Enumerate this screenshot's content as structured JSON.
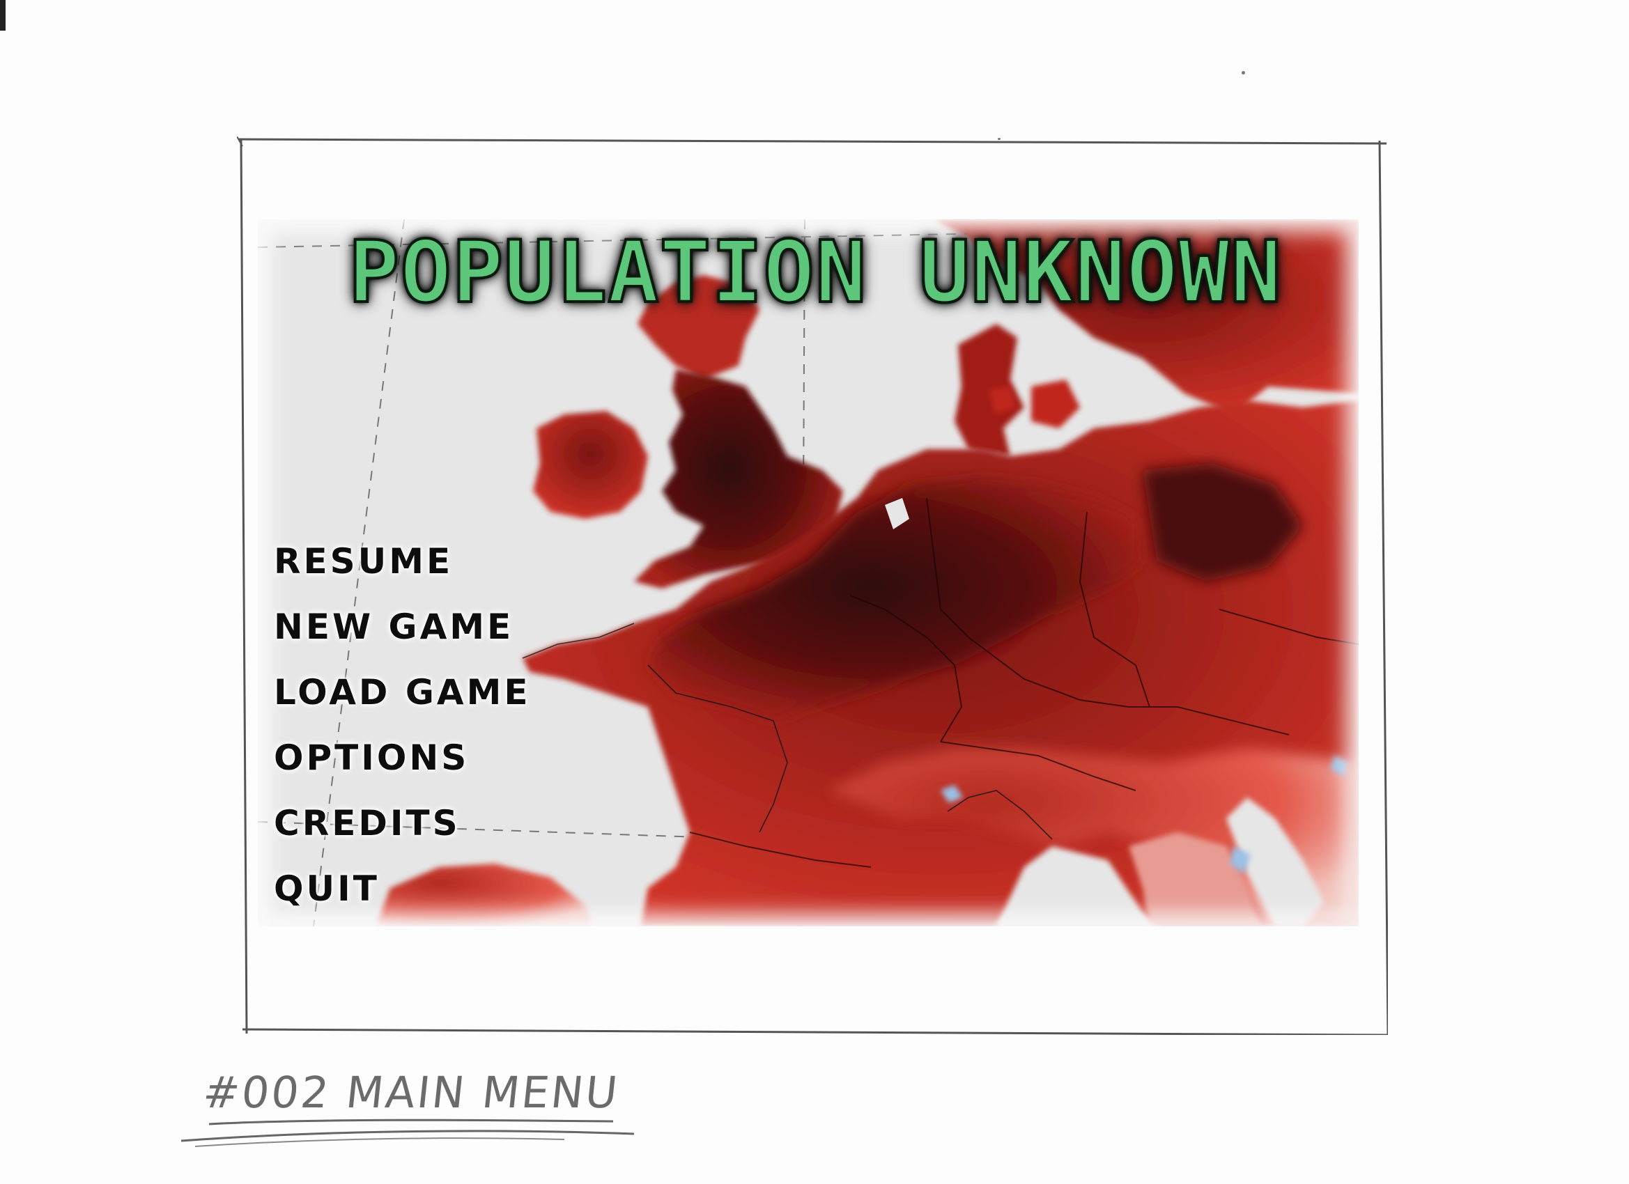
{
  "game": {
    "title": "POPULATION UNKNOWN"
  },
  "menu": {
    "items": [
      {
        "label": "RESUME"
      },
      {
        "label": "NEW GAME"
      },
      {
        "label": "LOAD GAME"
      },
      {
        "label": "OPTIONS"
      },
      {
        "label": "CREDITS"
      },
      {
        "label": "QUIT"
      }
    ]
  },
  "sketch": {
    "caption": "#002 MAIN MENU"
  },
  "colors": {
    "title_fill": "#5cc77a",
    "map_dark": "#3a0a0a",
    "map_mid": "#8f1a14",
    "map_light": "#d8362a",
    "sea": "#e6e6e6"
  }
}
